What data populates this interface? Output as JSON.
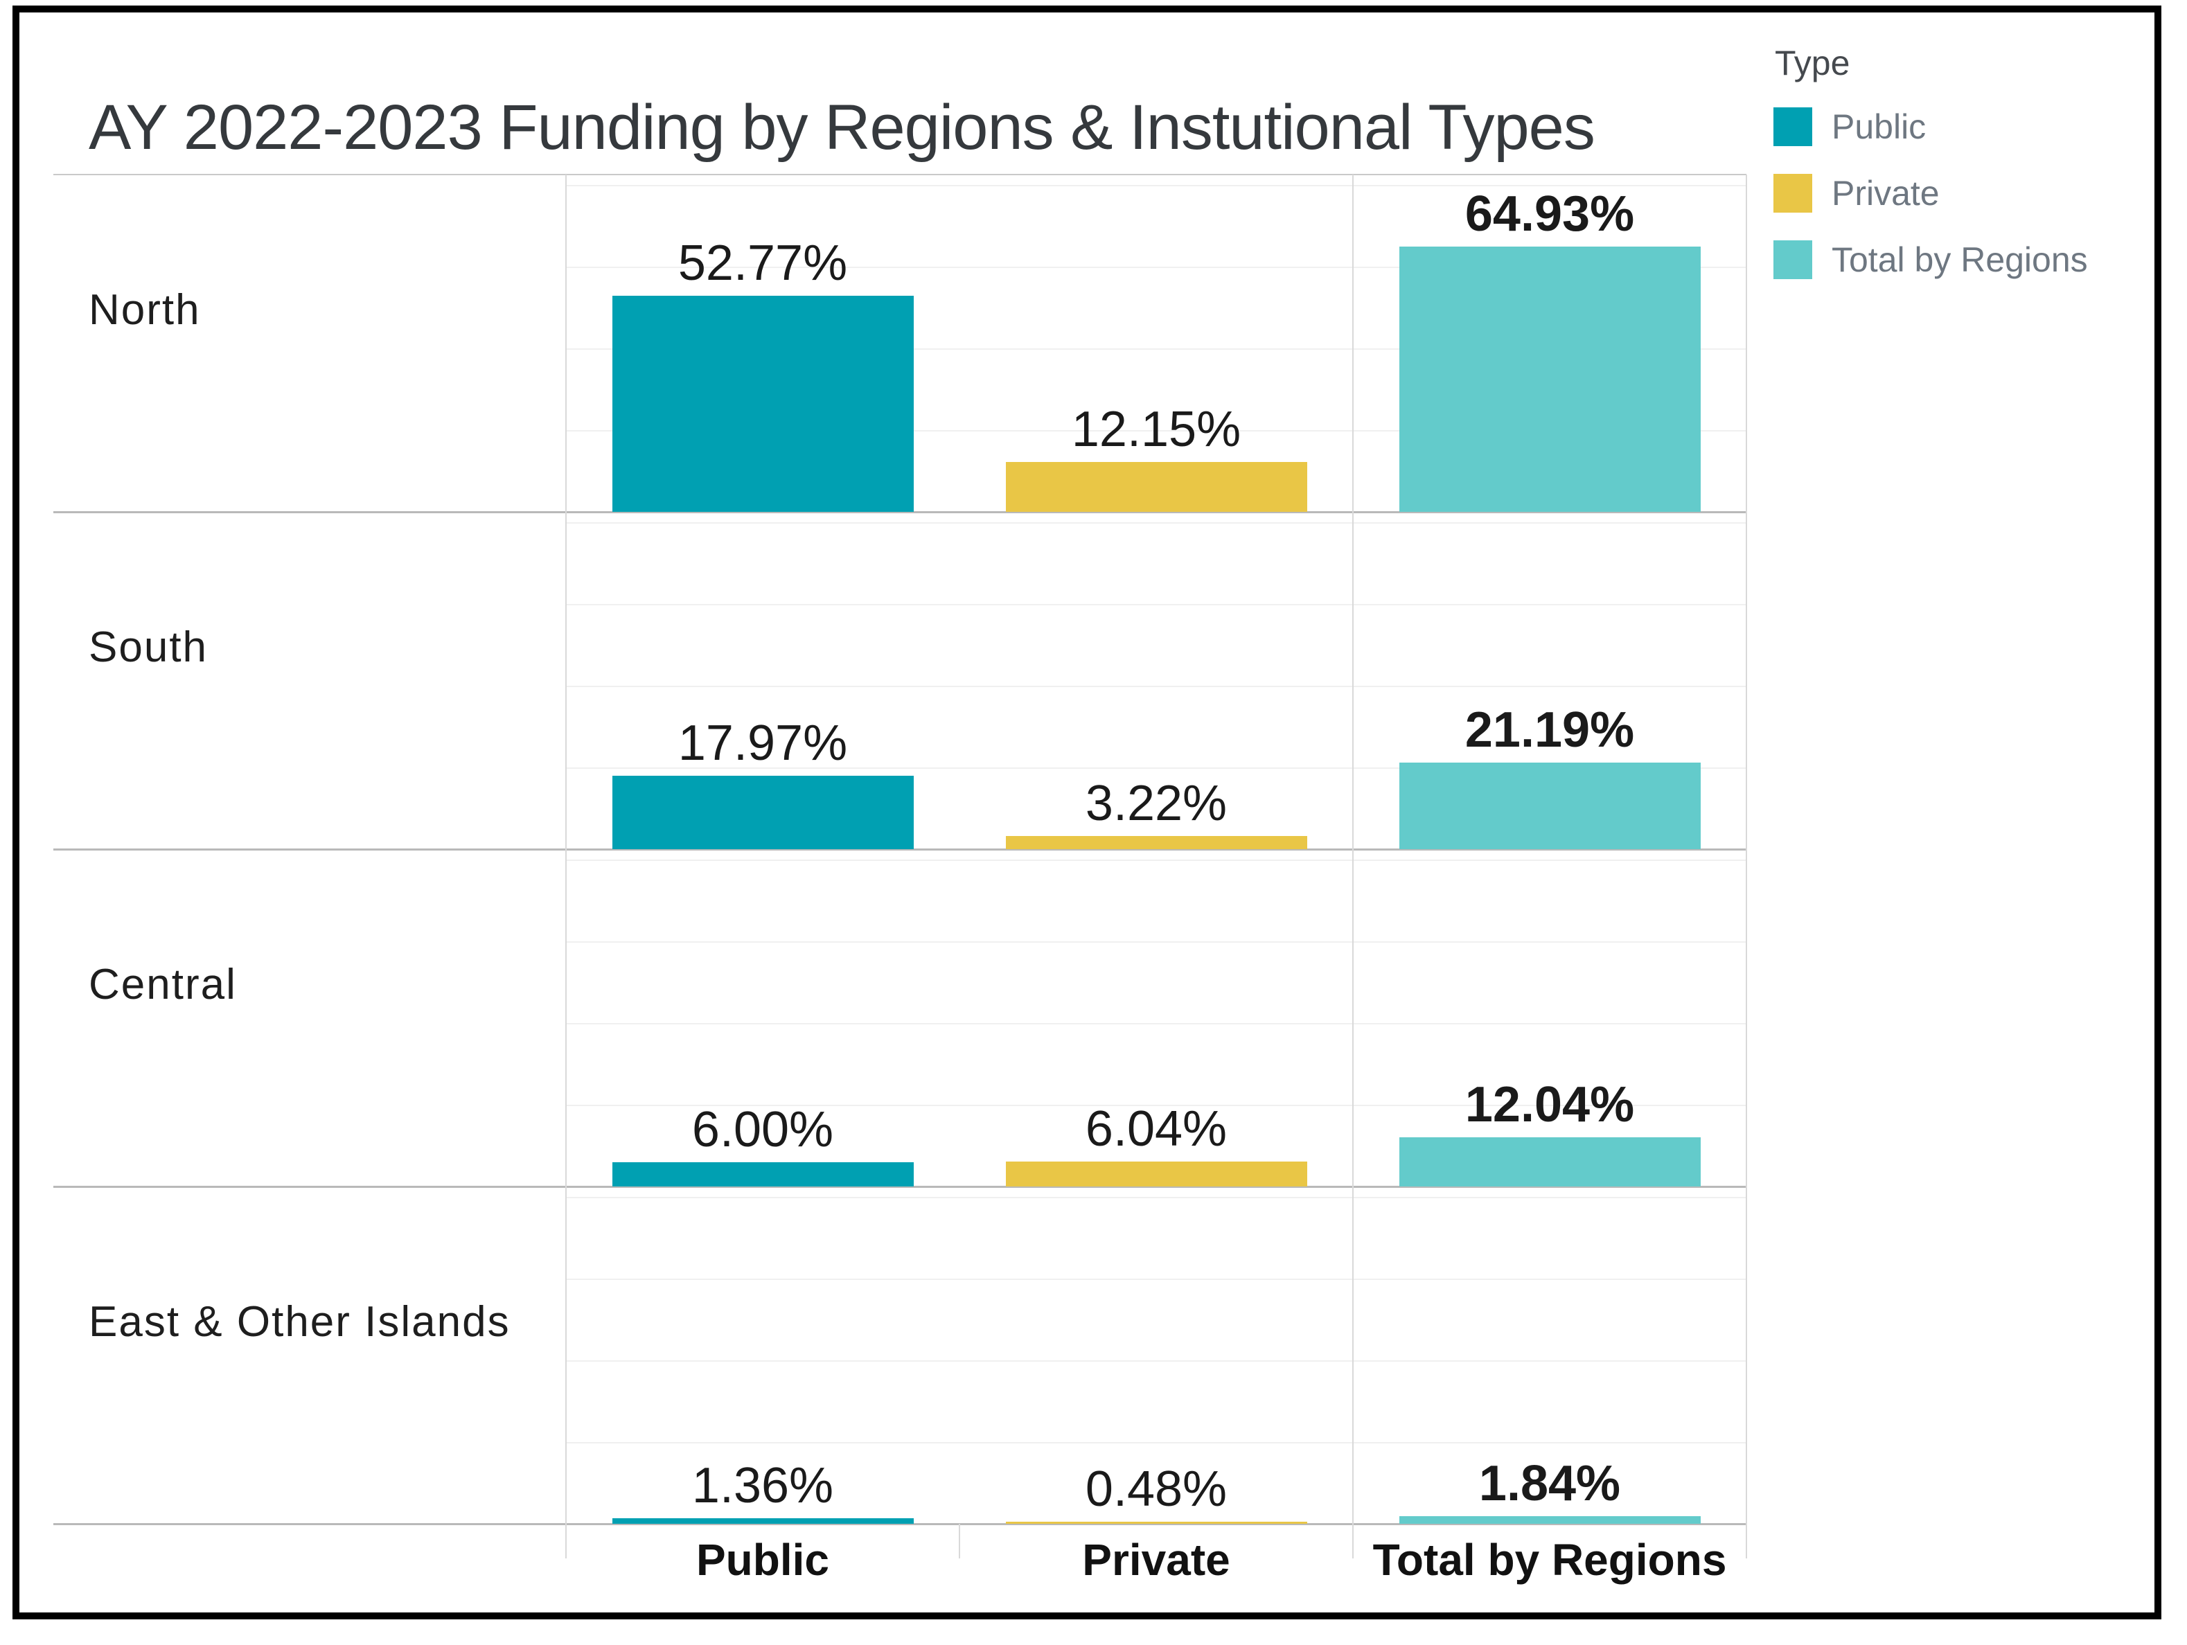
{
  "title": "AY 2022-2023 Funding by Regions & Instutional Types",
  "legend": {
    "title": "Type",
    "items": [
      {
        "label": "Public",
        "color": "#00A0B2"
      },
      {
        "label": "Private",
        "color": "#E9C646"
      },
      {
        "label": "Total by Regions",
        "color": "#63CBCB"
      }
    ]
  },
  "colors": {
    "public": "#00A0B2",
    "private": "#E9C646",
    "total": "#63CBCB",
    "grid_faint": "#F0F0F0",
    "row_separator": "#B9B9B9",
    "chart_top_border": "#C9C9C9",
    "column_line": "#D9D9D9",
    "frame_border": "#000000",
    "title_text": "#35393D",
    "legend_title_text": "#45494E",
    "legend_label_text": "#6E7781",
    "region_label_text": "#1E1E1E",
    "value_label_text": "#1A1A1A",
    "axis_label_text": "#111111"
  },
  "chart_data": {
    "type": "bar",
    "title": "AY 2022-2023 Funding by Regions & Instutional Types",
    "layout_note": "4 horizontal region bands, each with its own 0-82.5% vertical scale; 3 bar columns per band",
    "categories": [
      "North",
      "South",
      "Central",
      "East & Other Islands"
    ],
    "columns": [
      "Public",
      "Private",
      "Total by Regions"
    ],
    "series": [
      {
        "name": "Public",
        "color": "#00A0B2",
        "values": [
          52.77,
          17.97,
          6.0,
          1.36
        ]
      },
      {
        "name": "Private",
        "color": "#E9C646",
        "values": [
          12.15,
          3.22,
          6.04,
          0.48
        ]
      },
      {
        "name": "Total by Regions",
        "color": "#63CBCB",
        "values": [
          64.93,
          21.19,
          12.04,
          1.84
        ]
      }
    ],
    "value_labels": [
      [
        "52.77%",
        "12.15%",
        "64.93%"
      ],
      [
        "17.97%",
        "3.22%",
        "21.19%"
      ],
      [
        "6.00%",
        "6.04%",
        "12.04%"
      ],
      [
        "1.36%",
        "0.48%",
        "1.84%"
      ]
    ],
    "ylim": [
      0,
      82.5
    ],
    "gridlines_pct": [
      20,
      40,
      60,
      80
    ],
    "grid": true,
    "legend_position": "top-right",
    "value_label_bold_series": "Total by Regions"
  }
}
